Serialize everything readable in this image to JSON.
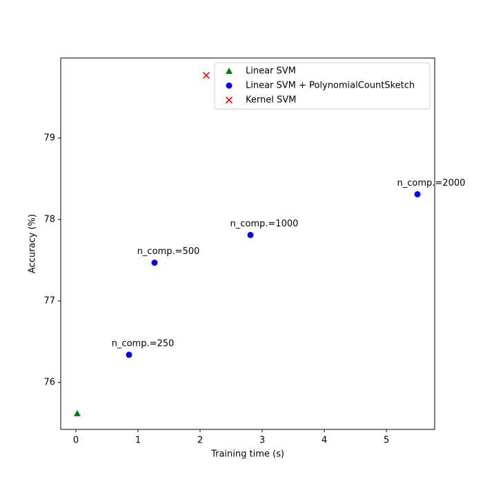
{
  "chart_data": {
    "type": "scatter",
    "x_label": "Training time (s)",
    "y_label": "Accuracy (%)",
    "xlim": [
      -0.244,
      5.778
    ],
    "ylim": [
      75.424,
      79.983
    ],
    "xticks": [
      0,
      1,
      2,
      3,
      4,
      5
    ],
    "yticks": [
      76,
      77,
      78,
      79
    ],
    "legend": "upper right",
    "series": [
      {
        "name": "Linear SVM",
        "color": "green",
        "marker": "triangle",
        "x": [
          0.022
        ],
        "values": [
          75.62
        ]
      },
      {
        "name": "Linear SVM + PolynomialCountSketch",
        "color": "blue",
        "marker": "circle",
        "x": [
          0.856,
          1.267,
          2.811,
          5.5
        ],
        "values": [
          76.34,
          77.47,
          77.81,
          78.31
        ],
        "point_labels": [
          "n_comp.=250",
          "n_comp.=500",
          "n_comp.=1000",
          "n_comp.=2000"
        ]
      },
      {
        "name": "Kernel SVM",
        "color": "red",
        "marker": "x",
        "x": [
          2.1
        ],
        "values": [
          79.77
        ]
      }
    ]
  }
}
